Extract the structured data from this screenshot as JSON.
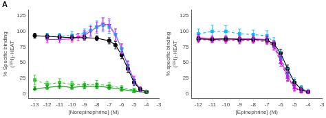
{
  "chart_data": [
    {
      "type": "line",
      "xlabel": "[Norepinephrine] (M)",
      "ylabel": "% Specific binding\n(¹²⁵I)-HEAT",
      "annotations": [
        "A"
      ],
      "xlim": [
        -13.5,
        -3.0
      ],
      "ylim": [
        -8,
        135
      ],
      "xticks": [
        -13,
        -12,
        -11,
        -10,
        -9,
        -8,
        -7,
        -6,
        -5,
        -4,
        -3
      ],
      "yticks": [
        0,
        25,
        50,
        75,
        100,
        125
      ],
      "grid": false,
      "series": [
        {
          "color": "#000000",
          "marker": "circle",
          "line_style": "solid",
          "x": [
            -13,
            -12,
            -11,
            -10,
            -9,
            -8,
            -7,
            -6.5,
            -6,
            -5.5,
            -5,
            -4.5,
            -4
          ],
          "values": [
            93,
            92,
            91,
            90,
            90,
            89,
            85,
            78,
            62,
            40,
            18,
            7,
            3
          ],
          "yerr": [
            4,
            4,
            4,
            4,
            4,
            4,
            5,
            6,
            6,
            6,
            5,
            3,
            2
          ]
        },
        {
          "color": "#00BFFF",
          "marker": "square",
          "line_style": "dashed",
          "x": [
            -12,
            -11,
            -10,
            -9,
            -8.5,
            -8,
            -7.5,
            -7,
            -6.5,
            -6,
            -5.5,
            -5,
            -4.5,
            -4
          ],
          "values": [
            92,
            92,
            94,
            97,
            102,
            107,
            110,
            107,
            95,
            72,
            45,
            20,
            7,
            3
          ],
          "yerr": [
            5,
            5,
            6,
            7,
            8,
            10,
            10,
            10,
            9,
            8,
            8,
            6,
            4,
            2
          ]
        },
        {
          "color": "#FF00FF",
          "marker": "triangle-down",
          "line_style": "solid",
          "x": [
            -12,
            -11,
            -10,
            -9.5,
            -9,
            -8.5,
            -8,
            -7.5,
            -7,
            -6.5,
            -6,
            -5.5,
            -5,
            -4.5,
            -4
          ],
          "values": [
            87,
            87,
            88,
            91,
            94,
            100,
            107,
            112,
            110,
            95,
            72,
            45,
            22,
            7,
            3
          ],
          "yerr": [
            5,
            5,
            5,
            6,
            7,
            8,
            8,
            10,
            10,
            9,
            8,
            7,
            6,
            4,
            2
          ]
        },
        {
          "color": "#33CC33",
          "marker": "square",
          "line_style": "dashed",
          "x": [
            -13,
            -12,
            -11,
            -10,
            -9,
            -8,
            -7,
            -6,
            -5,
            -4
          ],
          "values": [
            22,
            15,
            18,
            15,
            14,
            15,
            13,
            9,
            6,
            3
          ],
          "yerr": [
            8,
            5,
            6,
            5,
            5,
            6,
            5,
            4,
            3,
            2
          ]
        },
        {
          "color": "#009900",
          "marker": "triangle-up",
          "line_style": "solid",
          "x": [
            -13,
            -12,
            -11,
            -10,
            -9,
            -8,
            -7,
            -6,
            -5,
            -4
          ],
          "values": [
            8,
            10,
            12,
            10,
            12,
            12,
            10,
            7,
            4,
            2
          ],
          "yerr": [
            3,
            3,
            4,
            3,
            4,
            4,
            3,
            3,
            2,
            1
          ]
        }
      ]
    },
    {
      "type": "line",
      "xlabel": "[Epinephrine] (M)",
      "ylabel": "% specific binding\n(¹²⁵I)-HEAT",
      "xlim": [
        -12.5,
        -3.0
      ],
      "ylim": [
        -8,
        135
      ],
      "xticks": [
        -12,
        -11,
        -10,
        -9,
        -8,
        -7,
        -6,
        -5,
        -4,
        -3
      ],
      "yticks": [
        0,
        25,
        50,
        75,
        100,
        125
      ],
      "grid": false,
      "series": [
        {
          "color": "#000000",
          "marker": "circle",
          "line_style": "solid",
          "x": [
            -12,
            -11,
            -10,
            -9,
            -8,
            -7,
            -6.5,
            -6,
            -5.5,
            -5,
            -4.5,
            -4
          ],
          "values": [
            88,
            87,
            88,
            87,
            87,
            86,
            80,
            65,
            40,
            18,
            7,
            3
          ],
          "yerr": [
            4,
            4,
            4,
            4,
            4,
            5,
            5,
            6,
            6,
            5,
            4,
            2
          ]
        },
        {
          "color": "#00BFFF",
          "marker": "square",
          "line_style": "dashed",
          "x": [
            -12,
            -11,
            -10,
            -9,
            -8,
            -7,
            -6.5,
            -6,
            -5.5,
            -5,
            -4.5,
            -4
          ],
          "values": [
            96,
            100,
            100,
            96,
            95,
            93,
            82,
            58,
            33,
            18,
            8,
            4
          ],
          "yerr": [
            8,
            10,
            9,
            8,
            7,
            8,
            8,
            9,
            8,
            7,
            5,
            3
          ]
        },
        {
          "color": "#FF00FF",
          "marker": "square",
          "line_style": "solid",
          "x": [
            -12,
            -11,
            -10,
            -9,
            -8,
            -7,
            -6.5,
            -6,
            -5.5,
            -5,
            -4.5,
            -4
          ],
          "values": [
            90,
            88,
            88,
            88,
            88,
            87,
            78,
            55,
            28,
            10,
            5,
            3
          ],
          "yerr": [
            5,
            5,
            5,
            5,
            5,
            6,
            6,
            7,
            7,
            5,
            4,
            2
          ]
        },
        {
          "color": "#CC00CC",
          "marker": "triangle-up",
          "line_style": "dashed",
          "x": [
            -12,
            -11,
            -10,
            -9,
            -8,
            -7,
            -6.5,
            -6,
            -5.5,
            -5,
            -4.5,
            -4
          ],
          "values": [
            87,
            86,
            86,
            85,
            85,
            84,
            76,
            50,
            26,
            9,
            4,
            2
          ],
          "yerr": [
            5,
            4,
            5,
            5,
            4,
            5,
            6,
            6,
            6,
            5,
            3,
            2
          ]
        }
      ]
    }
  ]
}
